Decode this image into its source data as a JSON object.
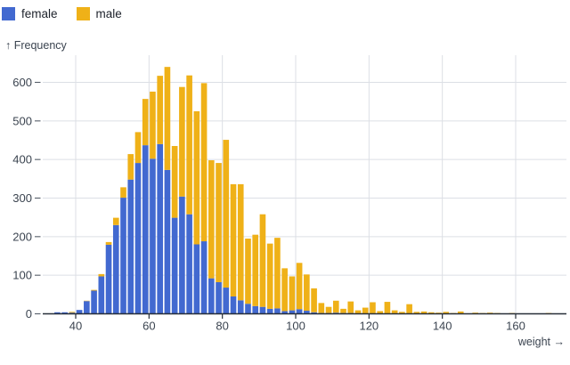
{
  "legend": {
    "items": [
      {
        "label": "female",
        "color": "#4269d0"
      },
      {
        "label": "male",
        "color": "#efb118"
      }
    ]
  },
  "y_axis": {
    "label": "↑ Frequency",
    "ticks": [
      0,
      100,
      200,
      300,
      400,
      500,
      600
    ]
  },
  "x_axis": {
    "label": "weight →",
    "ticks": [
      40,
      60,
      80,
      100,
      120,
      140,
      160
    ]
  },
  "colors": {
    "female": "#4269d0",
    "male": "#efb118",
    "gridline": "#dcdfe5",
    "axis_line": "#272e38",
    "tick_text": "#3b4450",
    "legend_text": "#1d222b",
    "background": "#ffffff"
  },
  "chart_data": {
    "type": "bar",
    "subtype": "stacked-histogram",
    "title": "",
    "xlabel": "weight",
    "ylabel": "Frequency",
    "legend_position": "top-left",
    "grid": true,
    "xlim": [
      31,
      174
    ],
    "ylim": [
      0,
      650
    ],
    "bin_width": 2,
    "bin_starts": [
      32,
      34,
      36,
      38,
      40,
      42,
      44,
      46,
      48,
      50,
      52,
      54,
      56,
      58,
      60,
      62,
      64,
      66,
      68,
      70,
      72,
      74,
      76,
      78,
      80,
      82,
      84,
      86,
      88,
      90,
      92,
      94,
      96,
      98,
      100,
      102,
      104,
      106,
      108,
      110,
      112,
      114,
      116,
      118,
      120,
      122,
      124,
      126,
      128,
      130,
      132,
      134,
      136,
      138,
      140,
      142,
      144,
      146,
      148,
      150,
      152,
      154,
      156,
      158,
      160,
      162,
      164,
      166,
      168
    ],
    "series": [
      {
        "name": "female",
        "color": "#4269d0",
        "values": [
          1,
          4,
          4,
          3,
          10,
          33,
          60,
          97,
          179,
          230,
          301,
          348,
          391,
          437,
          402,
          440,
          373,
          249,
          304,
          258,
          180,
          188,
          92,
          82,
          68,
          45,
          35,
          26,
          20,
          18,
          13,
          14,
          7,
          9,
          12,
          8,
          4,
          2,
          2,
          3,
          2,
          2,
          1,
          1,
          1,
          1,
          1,
          1,
          0,
          1,
          0,
          0,
          0,
          0,
          0,
          0,
          0,
          0,
          0,
          0,
          0,
          0,
          0,
          0,
          0,
          0,
          0,
          0,
          0
        ]
      },
      {
        "name": "male",
        "color": "#efb118",
        "values": [
          0,
          0,
          0,
          2,
          0,
          1,
          2,
          6,
          7,
          19,
          27,
          66,
          80,
          120,
          174,
          177,
          267,
          186,
          284,
          360,
          345,
          410,
          306,
          309,
          383,
          291,
          301,
          169,
          185,
          240,
          169,
          183,
          111,
          88,
          120,
          94,
          62,
          26,
          16,
          31,
          11,
          30,
          8,
          15,
          29,
          6,
          30,
          8,
          5,
          24,
          5,
          6,
          4,
          3,
          5,
          2,
          6,
          1,
          3,
          2,
          3,
          2,
          1,
          2,
          0,
          0,
          0,
          0,
          2
        ]
      }
    ]
  }
}
